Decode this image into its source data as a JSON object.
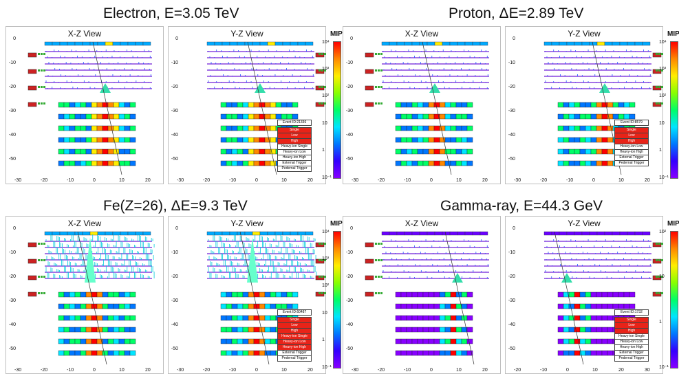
{
  "events": [
    {
      "title": "Electron,  E=3.05 TeV",
      "event_id": "Event ID:21336",
      "scale_labels": [
        "10⁴",
        "10³",
        "10²",
        "10",
        "1",
        "10⁻¹"
      ],
      "triggers": [
        "Single",
        "Low",
        "High",
        "Heavy-ion Single",
        "Heavy-ion Low",
        "Heavy-ion High",
        "External Trigger",
        "Pedernal Trigger"
      ]
    },
    {
      "title": "Proton,  ΔE=2.89 TeV",
      "event_id": "Event ID:8579",
      "scale_labels": [
        "10⁴",
        "10³",
        "10²",
        "10",
        "1",
        "10⁻¹"
      ],
      "triggers": [
        "Single",
        "Low",
        "High",
        "Heavy-ion Low",
        "Heavy-ion High",
        "External Trigger",
        "Pedernal Trigger"
      ]
    },
    {
      "title": "Fe(Z=26), ΔE=9.3 TeV",
      "event_id": "Event ID:60487",
      "scale_labels": [
        "10⁴",
        "10³",
        "10²",
        "10",
        "1",
        "10⁻¹"
      ],
      "triggers": [
        "Single",
        "Low",
        "High",
        "Heavy-ion Single",
        "Heavy-ion Low",
        "Heavy-ion High",
        "External Trigger",
        "Pedernal Trigger"
      ]
    },
    {
      "title": "Gamma-ray, E=44.3 GeV",
      "event_id": "Event ID:1732",
      "scale_labels": [
        "10²",
        "10",
        "1",
        "10⁻¹"
      ],
      "triggers": [
        "Single",
        "Low",
        "High",
        "Heavy-ion Single",
        "Heavy-ion Low",
        "Heavy-ion High",
        "External Trigger",
        "Pedernal Trigger"
      ]
    }
  ],
  "views": {
    "xz": "X-Z View",
    "yz": "Y-Z View"
  },
  "colorbar_label": "MIP",
  "y_ticks": [
    "0",
    "-10",
    "-20",
    "-30",
    "-40",
    "-50"
  ],
  "x_ticks": [
    "-30",
    "-20",
    "-10",
    "0",
    "10",
    "20"
  ],
  "x_ticks_gamma_yz": [
    "-20",
    "-10",
    "0",
    "10",
    "20",
    "30"
  ]
}
